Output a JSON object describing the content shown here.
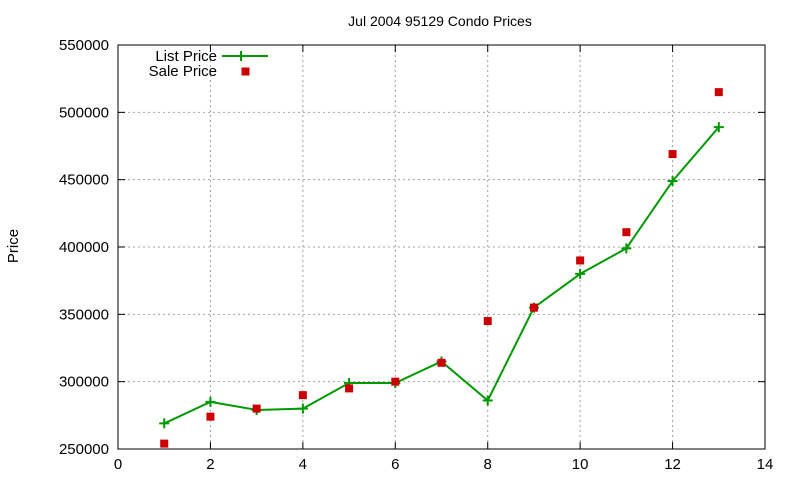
{
  "chart_data": {
    "type": "line",
    "title": "Jul 2004 95129 Condo Prices",
    "xlabel": "",
    "ylabel": "Price",
    "xlim": [
      0,
      14
    ],
    "ylim": [
      250000,
      550000
    ],
    "x_ticks": [
      0,
      2,
      4,
      6,
      8,
      10,
      12,
      14
    ],
    "x_tick_labels": [
      "0",
      "2",
      "4",
      "6",
      "8",
      "10",
      "12",
      "14"
    ],
    "y_ticks": [
      250000,
      300000,
      350000,
      400000,
      450000,
      500000,
      550000
    ],
    "y_tick_labels": [
      "250000",
      "300000",
      "350000",
      "400000",
      "450000",
      "500000",
      "550000"
    ],
    "grid": true,
    "legend_position": "top-left",
    "series": [
      {
        "name": "List Price",
        "style": "line-with-plus-markers",
        "color": "#009900",
        "x": [
          1,
          2,
          3,
          4,
          5,
          6,
          7,
          8,
          9,
          10,
          11,
          12,
          13
        ],
        "y": [
          269000,
          285000,
          279000,
          280000,
          299000,
          299000,
          315000,
          286000,
          355000,
          380000,
          399000,
          449000,
          489000
        ]
      },
      {
        "name": "Sale Price",
        "style": "square-points",
        "color": "#cc0000",
        "x": [
          1,
          2,
          3,
          4,
          5,
          6,
          7,
          8,
          9,
          10,
          11,
          12,
          13
        ],
        "y": [
          254000,
          274000,
          280000,
          290000,
          295000,
          300000,
          314000,
          345000,
          355000,
          390000,
          411000,
          469000,
          515000
        ]
      }
    ]
  }
}
